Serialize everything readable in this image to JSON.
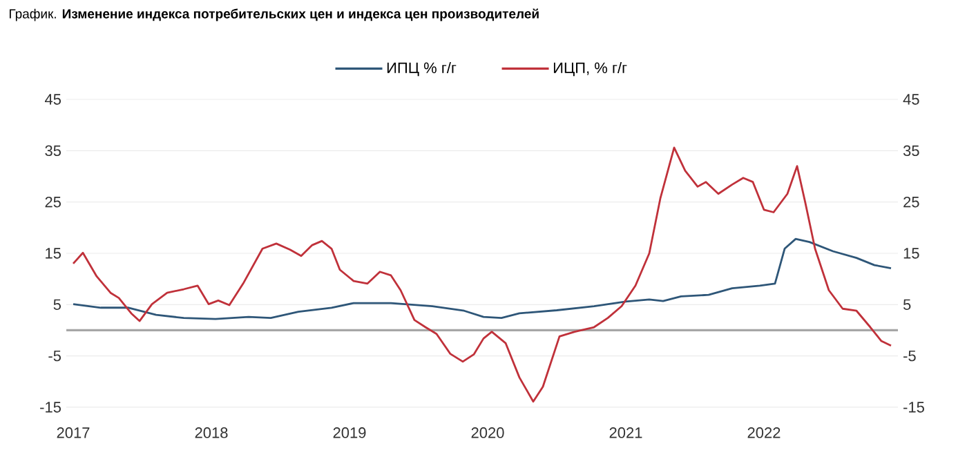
{
  "chart_data": {
    "type": "line",
    "title": "График. **Изменение индекса потребительских цен и индекса цен производителей**",
    "xlim": [
      2016.95,
      2022.97
    ],
    "xticks": [
      2017,
      2018,
      2019,
      2020,
      2021,
      2022
    ],
    "ylim": [
      -15,
      45
    ],
    "yticks": [
      -15,
      -5,
      5,
      15,
      25,
      35,
      45
    ],
    "y2lim": [
      -15,
      45
    ],
    "y2ticks": [
      -15,
      -5,
      5,
      15,
      25,
      35,
      45
    ],
    "grid": "y",
    "legend": "top",
    "marker": "none",
    "line_style": "solid",
    "ref_lines": [
      {
        "axis": "y",
        "value": 0,
        "color": "#a6a6a6"
      }
    ],
    "series": [
      {
        "name": "ИПЦ % г/г",
        "color": "#2e5678",
        "x": [
          2017.0,
          2017.2,
          2017.4,
          2017.6,
          2017.8,
          2018.03,
          2018.27,
          2018.43,
          2018.63,
          2018.87,
          2019.03,
          2019.3,
          2019.6,
          2019.83,
          2019.97,
          2020.1,
          2020.23,
          2020.5,
          2020.77,
          2021.0,
          2021.17,
          2021.27,
          2021.4,
          2021.6,
          2021.77,
          2021.97,
          2022.08,
          2022.15,
          2022.23,
          2022.33,
          2022.5,
          2022.67,
          2022.8,
          2022.92
        ],
        "values": [
          5.1,
          4.4,
          4.4,
          3.0,
          2.4,
          2.2,
          2.6,
          2.4,
          3.6,
          4.4,
          5.3,
          5.3,
          4.7,
          3.8,
          2.6,
          2.4,
          3.3,
          3.9,
          4.7,
          5.6,
          6.0,
          5.7,
          6.6,
          6.9,
          8.2,
          8.7,
          9.1,
          15.9,
          17.8,
          17.2,
          15.4,
          14.1,
          12.7,
          12.1
        ]
      },
      {
        "name": "ИЦП, % г/г",
        "color": "#c0313a",
        "x": [
          2017.0,
          2017.07,
          2017.17,
          2017.27,
          2017.33,
          2017.42,
          2017.48,
          2017.57,
          2017.68,
          2017.8,
          2017.9,
          2017.98,
          2018.05,
          2018.13,
          2018.23,
          2018.37,
          2018.47,
          2018.57,
          2018.65,
          2018.73,
          2018.8,
          2018.87,
          2018.93,
          2019.03,
          2019.13,
          2019.22,
          2019.3,
          2019.37,
          2019.47,
          2019.55,
          2019.63,
          2019.73,
          2019.82,
          2019.9,
          2019.97,
          2020.03,
          2020.13,
          2020.23,
          2020.33,
          2020.4,
          2020.52,
          2020.63,
          2020.77,
          2020.87,
          2020.97,
          2021.07,
          2021.17,
          2021.25,
          2021.35,
          2021.43,
          2021.52,
          2021.58,
          2021.67,
          2021.77,
          2021.85,
          2021.92,
          2022.0,
          2022.07,
          2022.17,
          2022.24,
          2022.3,
          2022.37,
          2022.47,
          2022.57,
          2022.67,
          2022.77,
          2022.85,
          2022.92
        ],
        "values": [
          13.0,
          15.1,
          10.5,
          7.3,
          6.3,
          3.3,
          1.8,
          5.1,
          7.3,
          8.0,
          8.7,
          5.1,
          5.8,
          4.9,
          9.1,
          15.9,
          16.9,
          15.7,
          14.5,
          16.6,
          17.4,
          15.9,
          11.8,
          9.6,
          9.1,
          11.4,
          10.7,
          7.8,
          2.0,
          0.6,
          -0.7,
          -4.6,
          -6.1,
          -4.7,
          -1.6,
          -0.3,
          -2.5,
          -9.2,
          -13.9,
          -11.0,
          -1.2,
          -0.3,
          0.6,
          2.4,
          4.7,
          8.7,
          15.0,
          25.7,
          35.6,
          31.1,
          28.0,
          28.9,
          26.6,
          28.4,
          29.7,
          28.9,
          23.5,
          23.0,
          26.6,
          32.0,
          24.8,
          15.9,
          7.8,
          4.2,
          3.8,
          0.6,
          -2.1,
          -3.0
        ]
      }
    ]
  }
}
